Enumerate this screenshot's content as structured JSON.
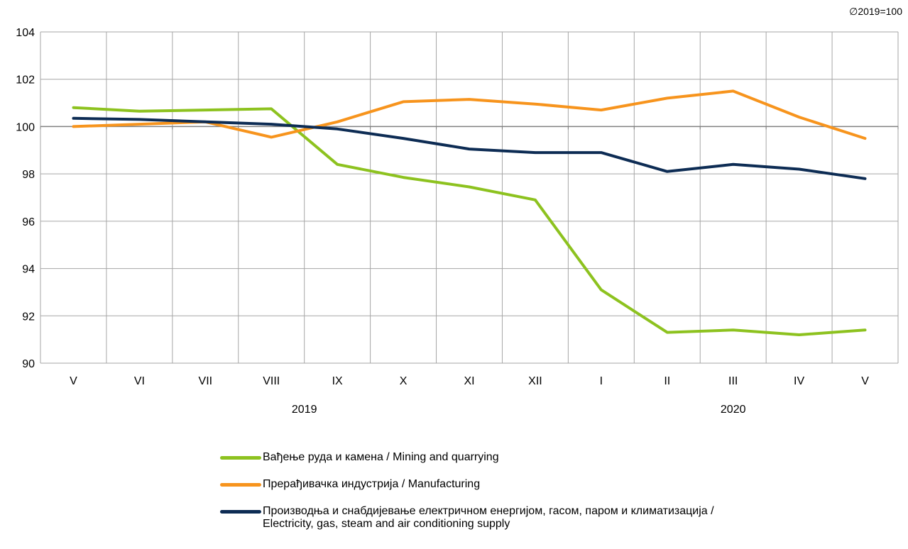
{
  "note": "∅2019=100",
  "chart_data": {
    "type": "line",
    "categories": [
      "V",
      "VI",
      "VII",
      "VIII",
      "IX",
      "X",
      "XI",
      "XII",
      "I",
      "II",
      "III",
      "IV",
      "V"
    ],
    "year_labels": [
      {
        "label": "2019",
        "category_index": 3.5
      },
      {
        "label": "2020",
        "category_index": 10
      }
    ],
    "ylim": [
      90,
      104
    ],
    "yticks": [
      90,
      92,
      94,
      96,
      98,
      100,
      102,
      104
    ],
    "reference_line": 100,
    "grid": true,
    "series": [
      {
        "name": "Вађење руда и камена / Mining and quarrying",
        "color": "#8dc21f",
        "values": [
          100.8,
          100.65,
          100.7,
          100.75,
          98.4,
          97.85,
          97.45,
          96.9,
          93.1,
          91.3,
          91.4,
          91.2,
          91.4
        ]
      },
      {
        "name": "Прерађивачка индустрија / Manufacturing",
        "color": "#f7941d",
        "values": [
          100.0,
          100.1,
          100.2,
          99.55,
          100.2,
          101.05,
          101.15,
          100.95,
          100.7,
          101.2,
          101.5,
          100.4,
          99.5
        ]
      },
      {
        "name": "Производња и снабдијевање електричном енергијом, гасом, паром и климатизација / Electricity, gas, steam and air conditioning supply",
        "name_lines": [
          "Производња и снабдијевање електричном енергијом, гасом, паром и климатизација /",
          "Electricity, gas, steam and air conditioning supply"
        ],
        "color": "#0d2c54",
        "values": [
          100.35,
          100.3,
          100.2,
          100.1,
          99.9,
          99.5,
          99.05,
          98.9,
          98.9,
          98.1,
          98.4,
          98.2,
          97.8
        ]
      }
    ]
  }
}
